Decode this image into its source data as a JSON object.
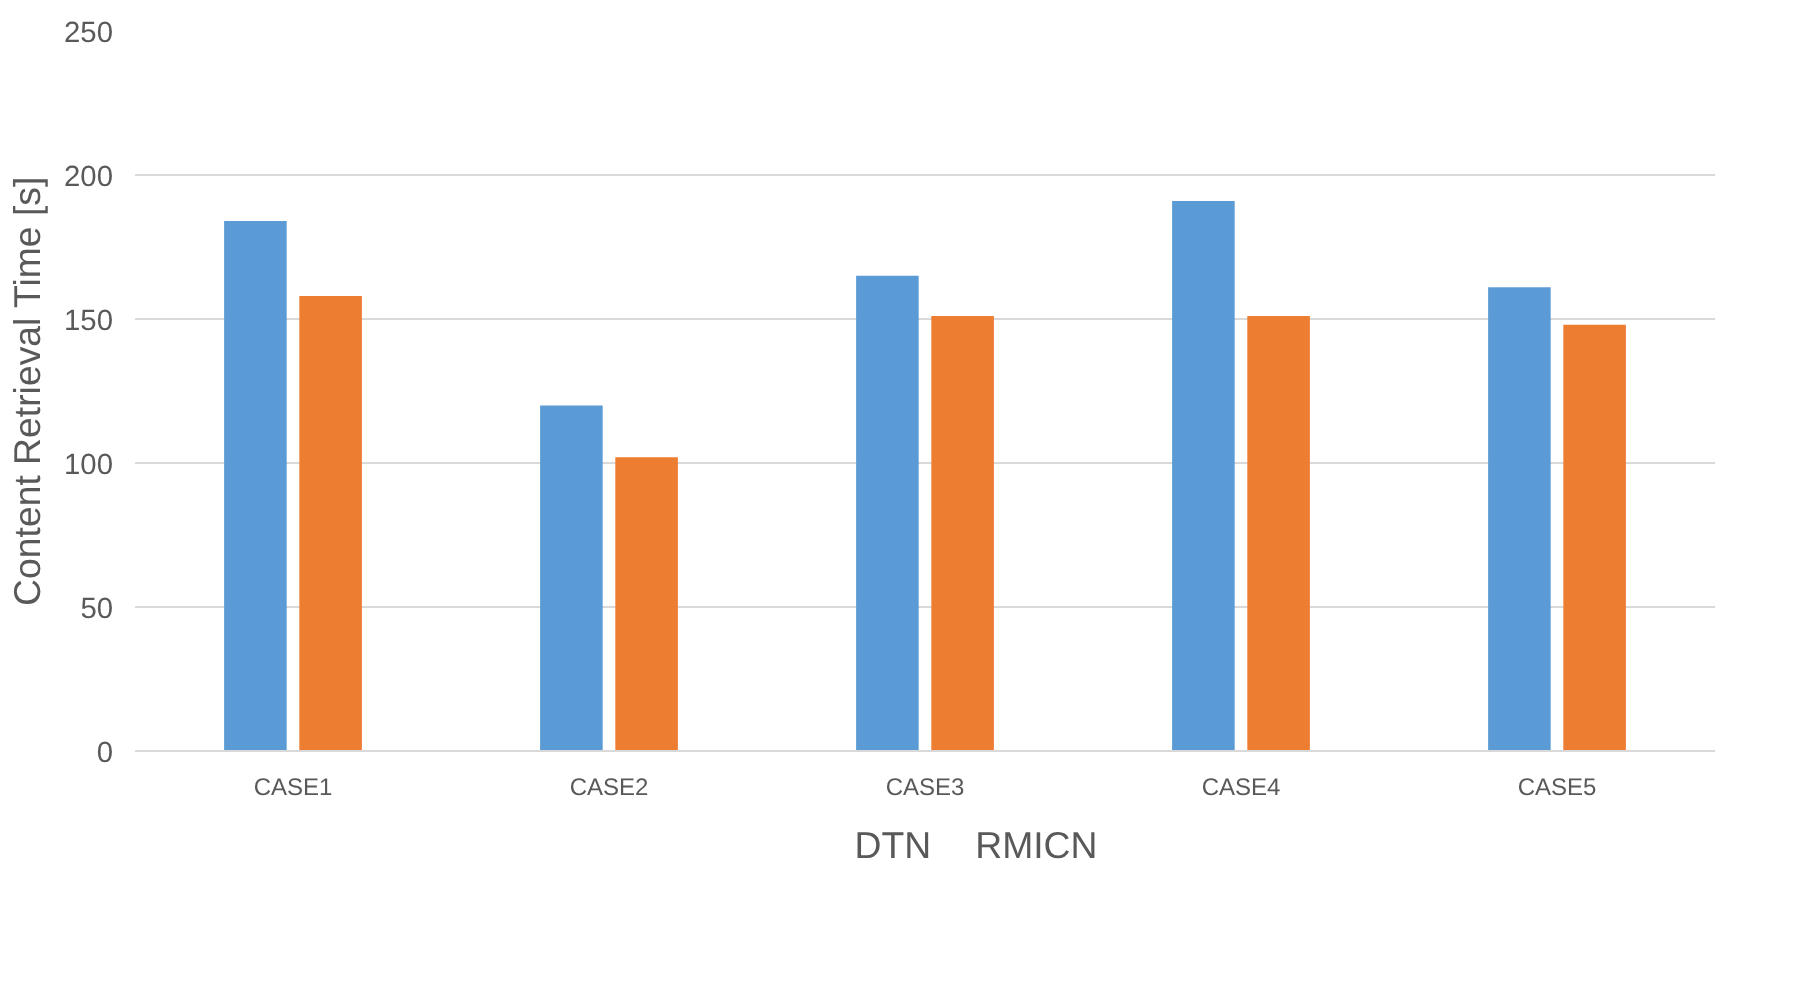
{
  "chart_data": {
    "type": "bar",
    "ylabel": "Content Retrieval Time [s]",
    "categories": [
      "CASE1",
      "CASE2",
      "CASE3",
      "CASE4",
      "CASE5"
    ],
    "series": [
      {
        "name": "DTN",
        "color": "#5b9bd5",
        "values": [
          184,
          120,
          165,
          191,
          161
        ]
      },
      {
        "name": "RMICN",
        "color": "#ed7d31",
        "values": [
          158,
          102,
          151,
          151,
          148
        ]
      }
    ],
    "ylim": [
      0,
      250
    ],
    "yticks": [
      0,
      50,
      100,
      150,
      200,
      250
    ],
    "grid": "y",
    "legend": "bottom"
  }
}
